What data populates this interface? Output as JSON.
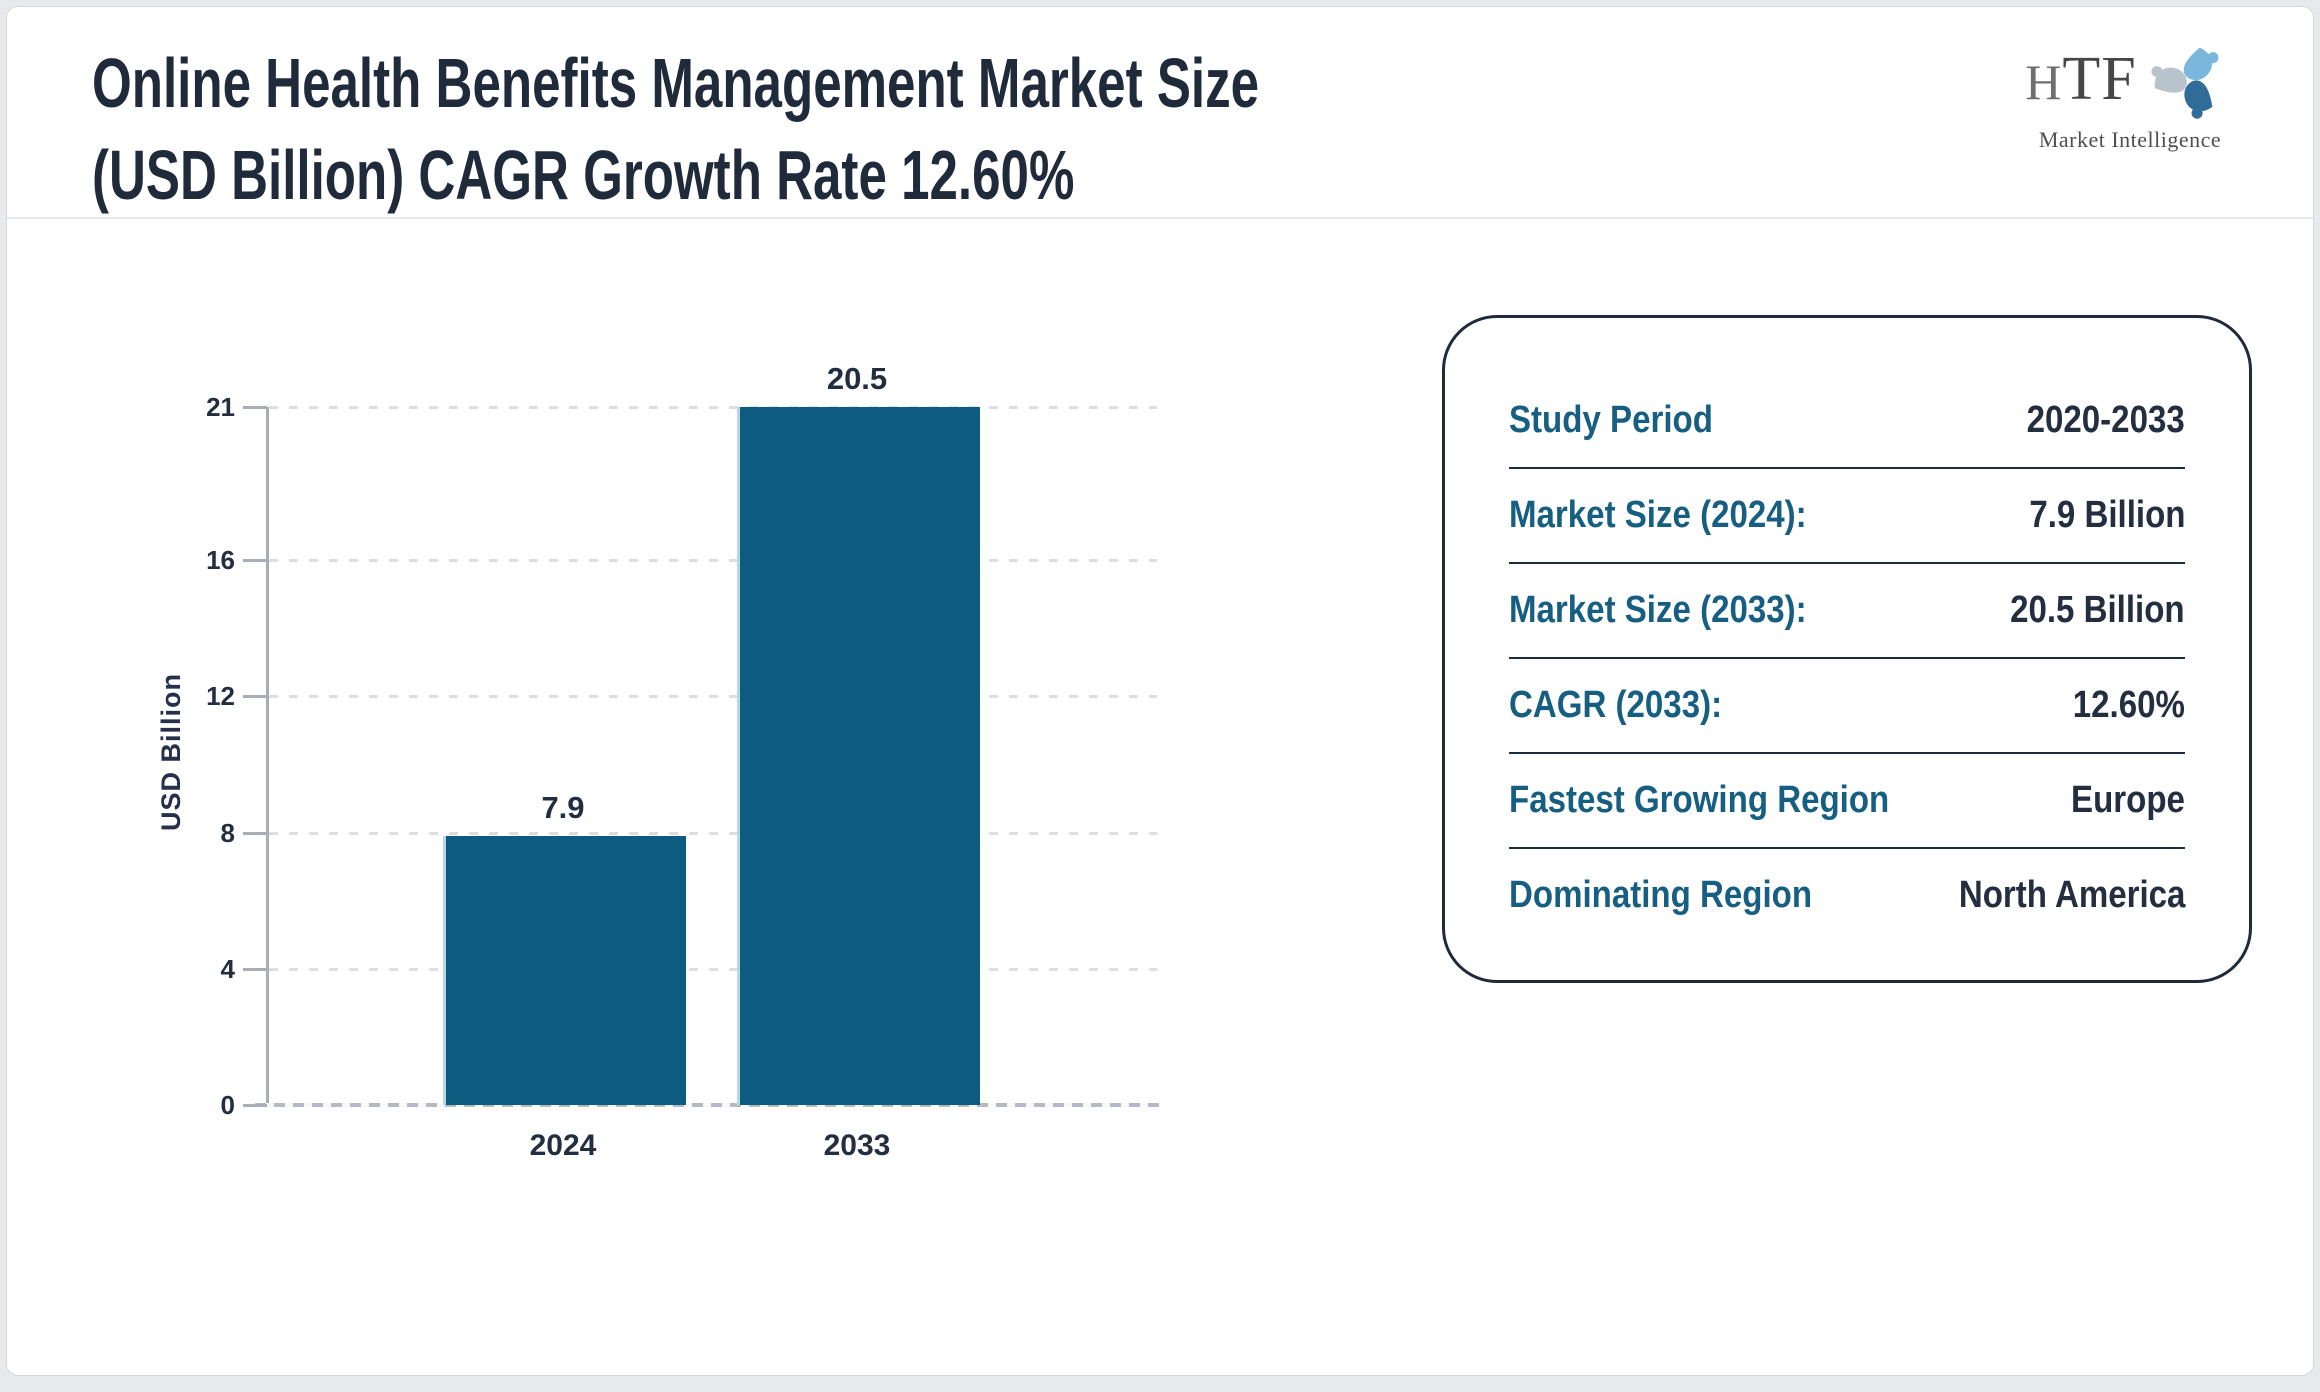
{
  "header": {
    "title_line1": "Online Health Benefits Management Market Size",
    "title_line2": "(USD Billion) CAGR Growth Rate 12.60%"
  },
  "logo": {
    "htf_h": "H",
    "htf_tf": "TF",
    "subtitle": "Market Intelligence",
    "swirl_colors": [
      "#79b7dc",
      "#2f6c97",
      "#b9c3cb"
    ]
  },
  "chart_data": {
    "type": "bar",
    "title": "Online Health Benefits Management Market Size (USD Billion) CAGR Growth Rate 12.60%",
    "categories": [
      "2024",
      "2033"
    ],
    "values": [
      7.9,
      20.5
    ],
    "value_labels": [
      "7.9",
      "20.5"
    ],
    "xlabel": "",
    "ylabel": "USD Billion",
    "yticks": [
      0,
      4,
      8,
      12,
      16,
      21
    ],
    "ylim": [
      0,
      20.5
    ],
    "grid": "dashed horizontal",
    "legend": "none",
    "bar_color": "#0d5b7e",
    "bar_edge_color": "#b5d7e8"
  },
  "panel": {
    "rows": [
      {
        "label": "Study Period",
        "value": "2020-2033"
      },
      {
        "label": "Market Size (2024):",
        "value": "7.9 Billion"
      },
      {
        "label": "Market Size (2033):",
        "value": "20.5 Billion"
      },
      {
        "label": "CAGR (2033):",
        "value": "12.60%"
      },
      {
        "label": "Fastest Growing Region",
        "value": "Europe"
      },
      {
        "label": "Dominating Region",
        "value": "North America"
      }
    ]
  },
  "colors": {
    "accent_teal": "#175f82",
    "dark_navy": "#1f2a3b",
    "bar": "#0d5b7e",
    "axis": "#a9aeb6",
    "grid": "#dcdee1"
  }
}
